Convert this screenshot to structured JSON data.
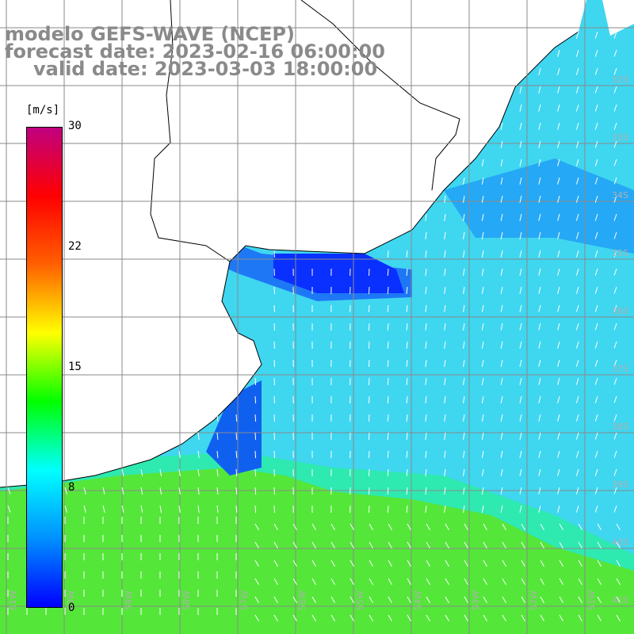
{
  "title": {
    "line1": "modelo GEFS-WAVE (NCEP)",
    "line2": "forecast date: 2023-02-16 06:00:00",
    "line3": "valid date: 2023-03-03 18:00:00"
  },
  "colorbar": {
    "unit": "[m/s]",
    "ticks": [
      "30",
      "22",
      "15",
      "8",
      "0"
    ],
    "range": [
      0,
      30
    ],
    "colors": [
      "#0000ff",
      "#0090ff",
      "#00ffff",
      "#00ff00",
      "#ffff00",
      "#ff6000",
      "#ff0000",
      "#c00080"
    ]
  },
  "map": {
    "region": "Río de la Plata / Uruguay coast, South Atlantic",
    "land_color": "#ffffff",
    "grid_color": "#808080",
    "lat_labels": [
      "32S",
      "33S",
      "34S",
      "35S",
      "36S",
      "37S",
      "38S",
      "39S",
      "40S",
      "41S"
    ],
    "lon_labels": [
      "61W",
      "60W",
      "59W",
      "58W",
      "57W",
      "56W",
      "55W",
      "54W",
      "53W",
      "52W",
      "51W"
    ]
  }
}
